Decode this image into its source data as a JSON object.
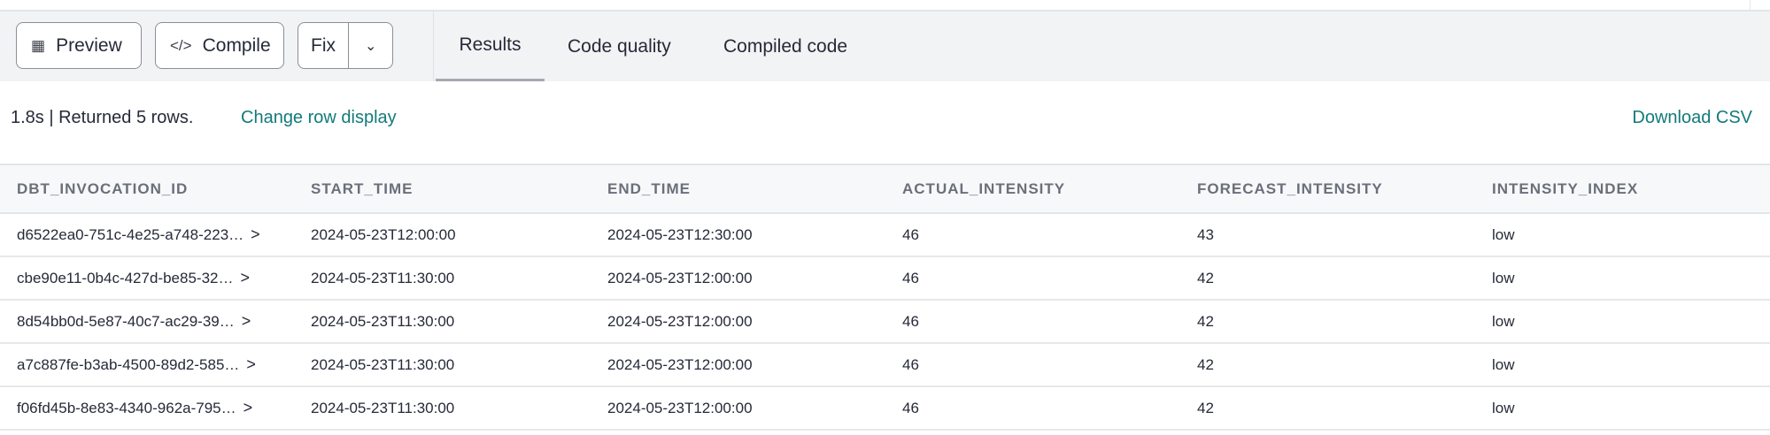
{
  "toolbar": {
    "preview": "Preview",
    "compile": "Compile",
    "fix": "Fix"
  },
  "tabs": [
    "Results",
    "Code quality",
    "Compiled code"
  ],
  "status": {
    "text": "1.8s | Returned 5 rows.",
    "change_row_display": "Change row display",
    "download_csv": "Download CSV"
  },
  "table": {
    "columns": [
      "DBT_INVOCATION_ID",
      "START_TIME",
      "END_TIME",
      "ACTUAL_INTENSITY",
      "FORECAST_INTENSITY",
      "INTENSITY_INDEX"
    ],
    "rows": [
      [
        "d6522ea0-751c-4e25-a748-223…",
        "2024-05-23T12:00:00",
        "2024-05-23T12:30:00",
        "46",
        "43",
        "low"
      ],
      [
        "cbe90e11-0b4c-427d-be85-32…",
        "2024-05-23T11:30:00",
        "2024-05-23T12:00:00",
        "46",
        "42",
        "low"
      ],
      [
        "8d54bb0d-5e87-40c7-ac29-39…",
        "2024-05-23T11:30:00",
        "2024-05-23T12:00:00",
        "46",
        "42",
        "low"
      ],
      [
        "a7c887fe-b3ab-4500-89d2-585…",
        "2024-05-23T11:30:00",
        "2024-05-23T12:00:00",
        "46",
        "42",
        "low"
      ],
      [
        "f06fd45b-8e83-4340-962a-795…",
        "2024-05-23T11:30:00",
        "2024-05-23T12:00:00",
        "46",
        "42",
        "low"
      ]
    ]
  },
  "colors": {
    "link": "#137a7a"
  }
}
